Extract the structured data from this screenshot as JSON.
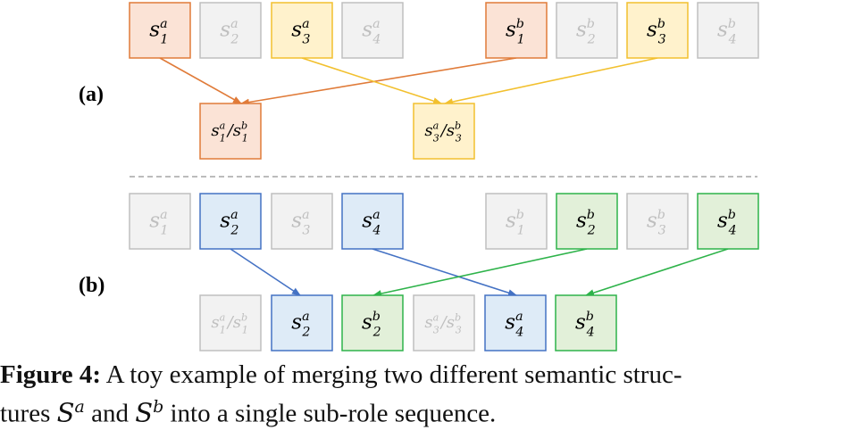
{
  "panels": {
    "a": {
      "label": "(a)"
    },
    "b": {
      "label": "(b)"
    }
  },
  "roles": [
    "s",
    "a",
    "b",
    "1",
    "2",
    "3",
    "4",
    "/"
  ],
  "caption": {
    "figure_label": "Figure 4:",
    "line1_text": " A toy example of merging two different semantic struc-",
    "line2_prefix": "tures ",
    "struct_a_symbol": "S",
    "struct_a_sup": "a",
    "and_text": " and ",
    "struct_b_symbol": "S",
    "struct_b_sup": "b",
    "line2_suffix": " into a single sub-role sequence."
  },
  "colors": {
    "orange_fill": "#FBE3D6",
    "orange_stroke": "#E07B39",
    "yellow_fill": "#FFF2CC",
    "yellow_stroke": "#F2C02E",
    "blue_fill": "#DEEBF7",
    "blue_stroke": "#4472C4",
    "green_fill": "#E2F0D9",
    "green_stroke": "#2EB34A",
    "gray_fill": "#F2F2F2",
    "gray_stroke": "#BFBFBF",
    "gray_text": "#BFBFBF",
    "divider": "#A6A6A6"
  }
}
